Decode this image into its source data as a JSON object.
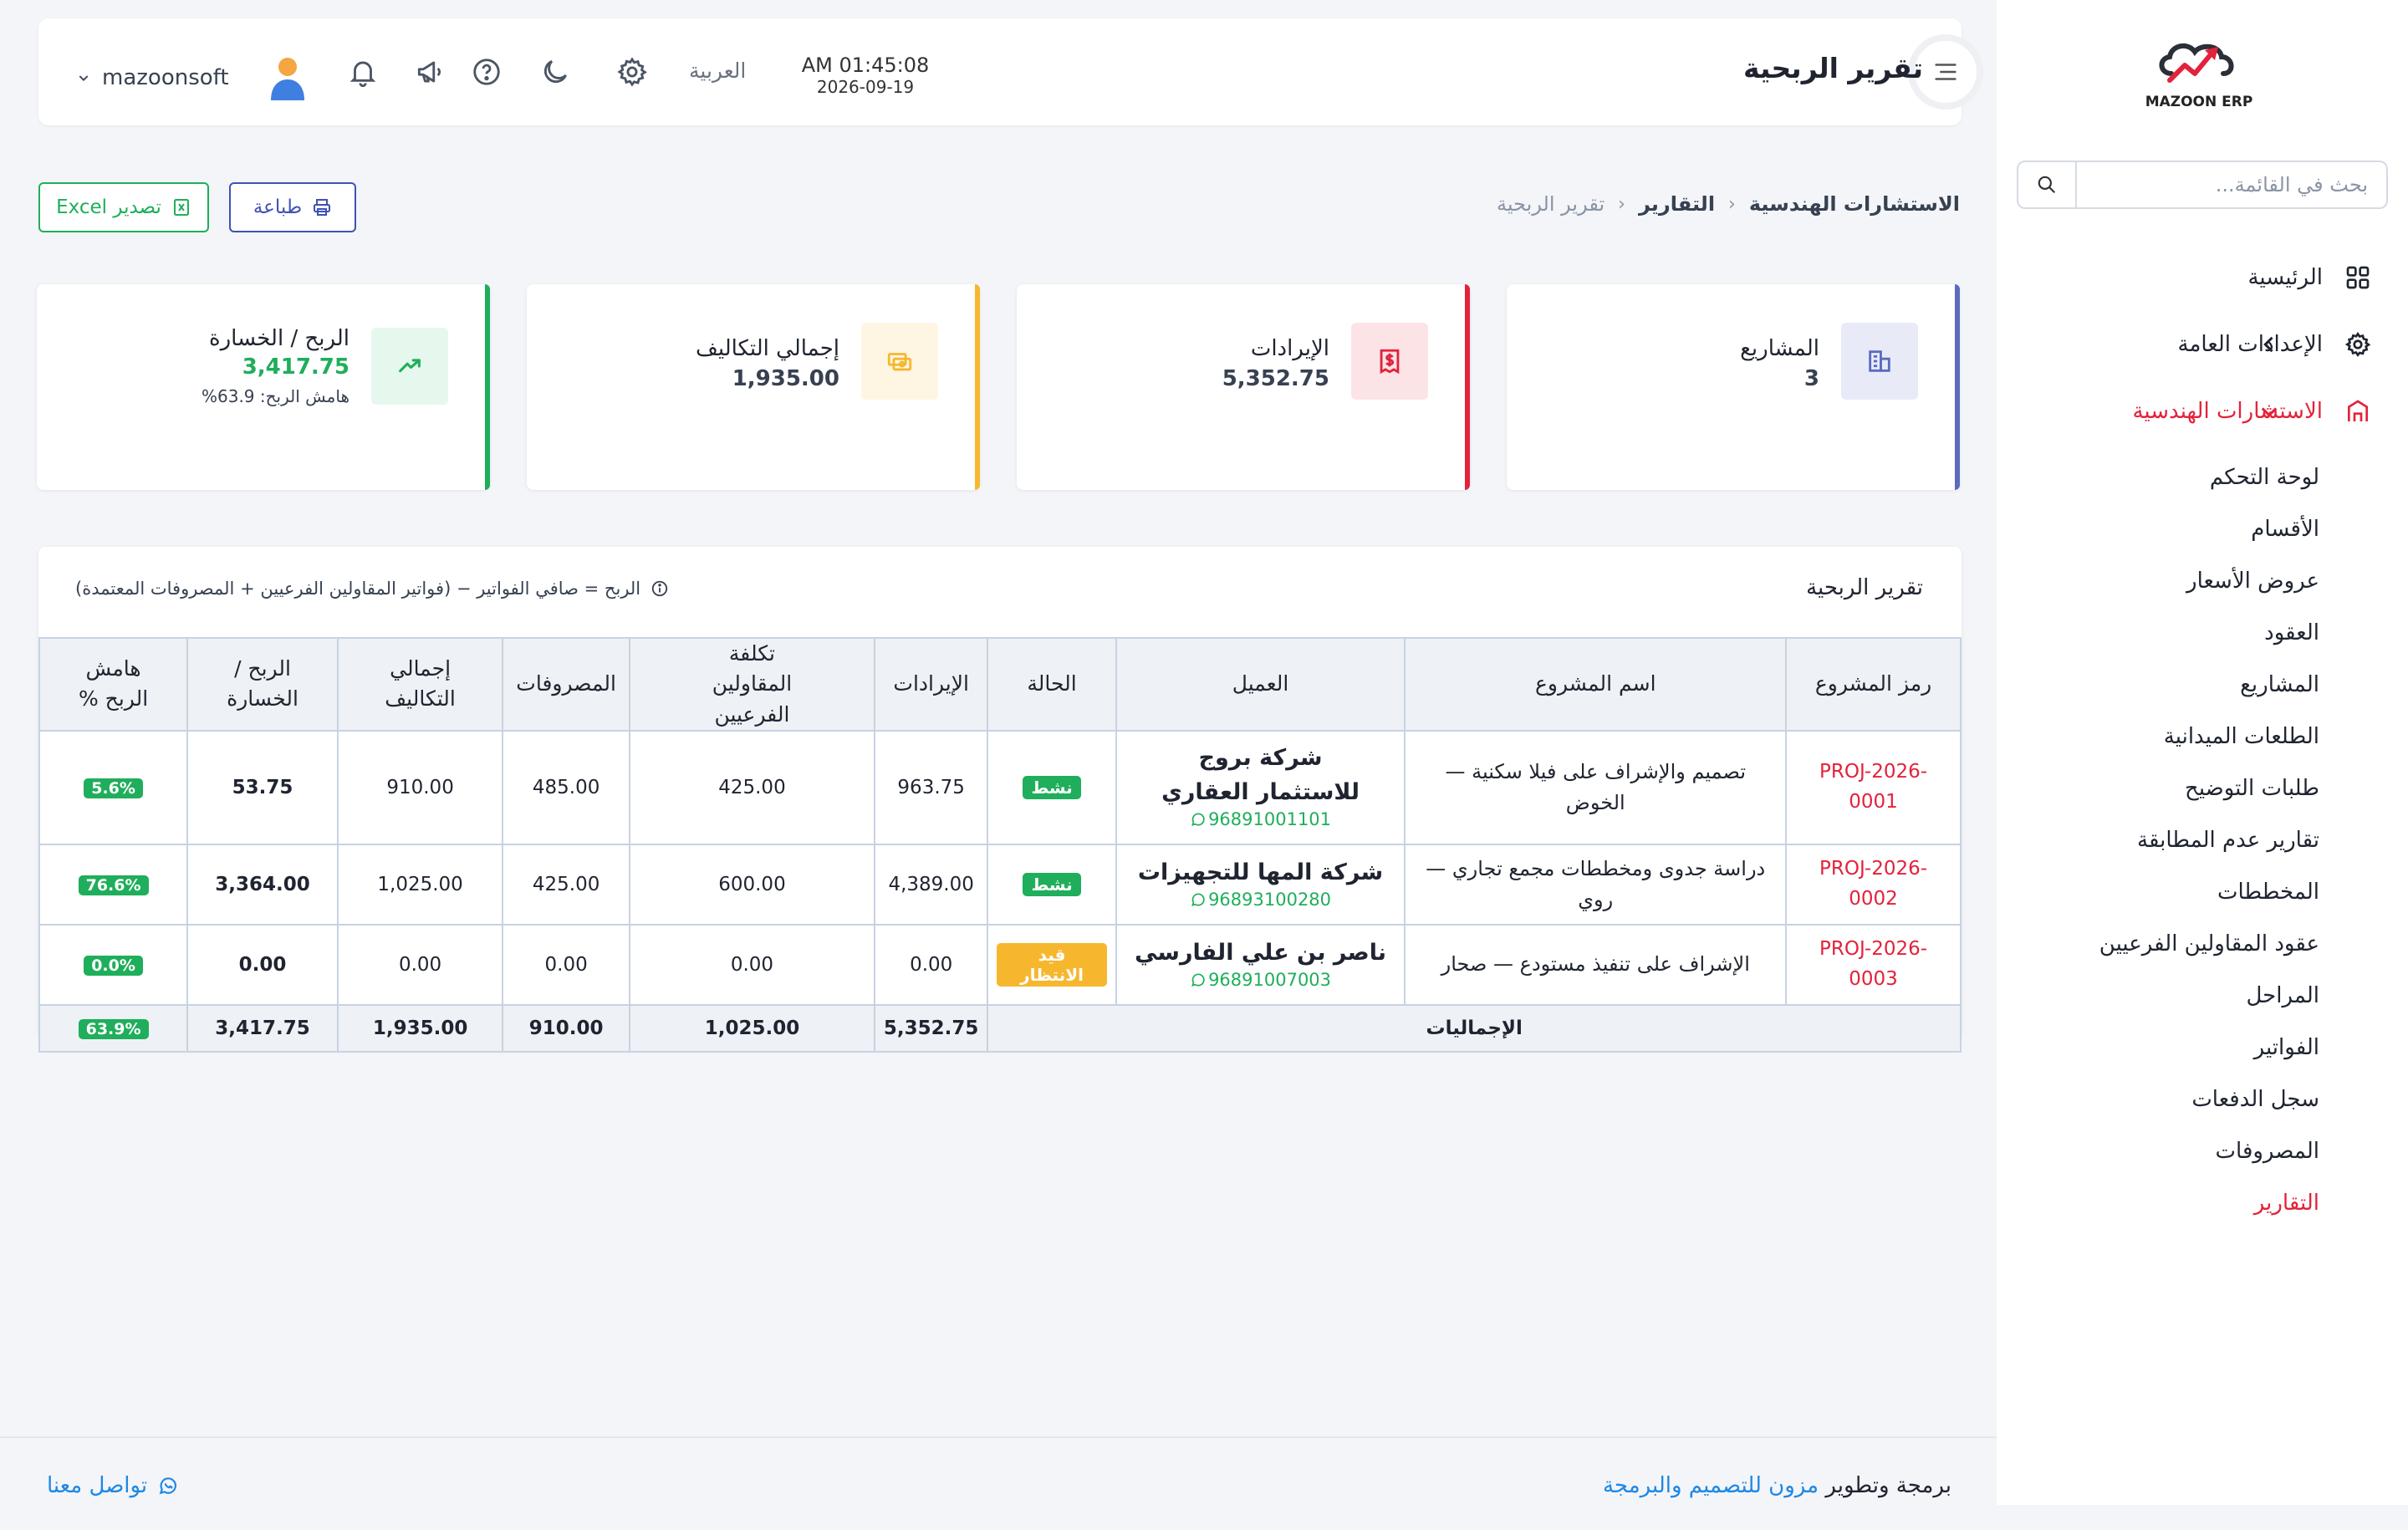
{
  "sidebar": {
    "logo_text": "MAZOON ERP",
    "search_placeholder": "بحث في القائمة...",
    "nav": [
      {
        "label": "الرئيسية"
      },
      {
        "label": "الإعدادات العامة"
      },
      {
        "label": "الاستشارات الهندسية"
      }
    ],
    "subnav": [
      {
        "label": "لوحة التحكم"
      },
      {
        "label": "الأقسام"
      },
      {
        "label": "عروض الأسعار"
      },
      {
        "label": "العقود"
      },
      {
        "label": "المشاريع"
      },
      {
        "label": "الطلعات الميدانية"
      },
      {
        "label": "طلبات التوضيح"
      },
      {
        "label": "تقارير عدم المطابقة"
      },
      {
        "label": "المخططات"
      },
      {
        "label": "عقود المقاولين الفرعيين"
      },
      {
        "label": "المراحل"
      },
      {
        "label": "الفواتير"
      },
      {
        "label": "سجل الدفعات"
      },
      {
        "label": "المصروفات"
      },
      {
        "label": "التقارير"
      }
    ]
  },
  "header": {
    "title": "تقرير الربحية",
    "time": "AM 01:45:08",
    "date": "2026-09-19",
    "language": "العربية",
    "username": "mazoonsoft",
    "icons": [
      "settings-icon",
      "moon-icon",
      "help-icon",
      "megaphone-icon",
      "bell-icon"
    ]
  },
  "breadcrumb": {
    "items": [
      "الاستشارات الهندسية",
      "التقارير"
    ],
    "current": "تقرير الربحية"
  },
  "actions": {
    "print": "طباعة",
    "excel": "تصدير Excel"
  },
  "kpis": {
    "projects": {
      "label": "المشاريع",
      "value": "3",
      "color": "#5b6bbf"
    },
    "revenue": {
      "label": "الإيرادات",
      "value": "5,352.75",
      "color": "#e3223b"
    },
    "costs": {
      "label": "إجمالي التكاليف",
      "value": "1,935.00",
      "color": "#f6b72f"
    },
    "profit": {
      "label": "الربح / الخسارة",
      "value": "3,417.75",
      "sub": "هامش الربح: 63.9%",
      "color": "#1fae5b"
    }
  },
  "report": {
    "title": "تقرير الربحية",
    "note": "الربح = صافي الفواتير − (فواتير المقاولين الفرعيين + المصروفات المعتمدة)",
    "columns": [
      "رمز المشروع",
      "اسم المشروع",
      "العميل",
      "الحالة",
      "الإيرادات",
      "تكلفة المقاولين الفرعيين",
      "المصروفات",
      "إجمالي التكاليف",
      "الربح / الخسارة",
      "هامش الربح %"
    ],
    "rows": [
      {
        "code": "PROJ-2026-0001",
        "project": "تصميم والإشراف على فيلا سكنية — الخوض",
        "client": "شركة بروج للاستثمار العقاري",
        "phone": "96891001101",
        "status": "نشط",
        "revenue": "963.75",
        "subcontractors": "425.00",
        "expenses": "485.00",
        "total_costs": "910.00",
        "profit": "53.75",
        "margin": "5.6%"
      },
      {
        "code": "PROJ-2026-0002",
        "project": "دراسة جدوى ومخططات مجمع تجاري — روي",
        "client": "شركة المها للتجهيزات",
        "phone": "96893100280",
        "status": "نشط",
        "revenue": "4,389.00",
        "subcontractors": "600.00",
        "expenses": "425.00",
        "total_costs": "1,025.00",
        "profit": "3,364.00",
        "margin": "76.6%"
      },
      {
        "code": "PROJ-2026-0003",
        "project": "الإشراف على تنفيذ مستودع — صحار",
        "client": "ناصر بن علي الفارسي",
        "phone": "96891007003",
        "status": "قيد الانتظار",
        "revenue": "0.00",
        "subcontractors": "0.00",
        "expenses": "0.00",
        "total_costs": "0.00",
        "profit": "0.00",
        "margin": "0.0%"
      }
    ],
    "totals": {
      "label": "الإجماليات",
      "revenue": "5,352.75",
      "subcontractors": "1,025.00",
      "expenses": "910.00",
      "total_costs": "1,935.00",
      "profit": "3,417.75",
      "margin": "63.9%"
    }
  },
  "footer": {
    "credit_prefix": "برمجة وتطوير",
    "credit_link": "مزون للتصميم والبرمجة",
    "contact": "تواصل معنا"
  },
  "colors": {
    "accent_red": "#e3223b",
    "success_green": "#1fae5b",
    "warning_yellow": "#f6b72f",
    "primary_indigo": "#3f51b5",
    "link_blue": "#1e88e5"
  }
}
